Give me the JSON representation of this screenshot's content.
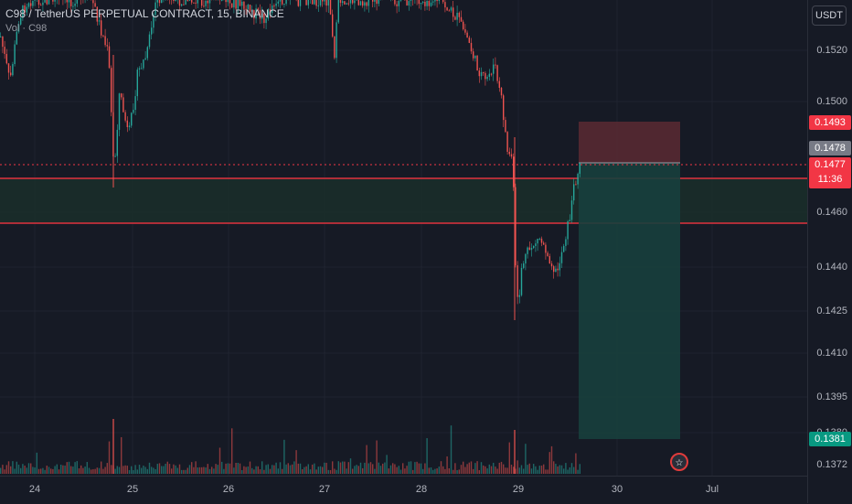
{
  "header": {
    "title": "C98 / TetherUS PERPETUAL CONTRACT, 15, BINANCE",
    "volume_label": "Vol · C98"
  },
  "price_axis": {
    "currency": "USDT",
    "ticks": [
      "0.1520",
      "0.1500",
      "0.1478",
      "0.1460",
      "0.1440",
      "0.1425",
      "0.1410",
      "0.1395",
      "0.1380",
      "0.1372"
    ],
    "labels": {
      "stop": "0.1493",
      "last": "0.1478",
      "current": "0.1477",
      "countdown": "11:36",
      "target": "0.1381"
    }
  },
  "time_axis": {
    "ticks": [
      "24",
      "25",
      "26",
      "27",
      "28",
      "29",
      "30",
      "Jul"
    ]
  },
  "colors": {
    "up": "#26a69a",
    "down": "#ef5350",
    "zone_line": "#e0323e",
    "stop_zone": "#5b2a33",
    "target_zone": "#173f3d"
  },
  "chart_data": {
    "type": "candlestick",
    "title": "C98 / TetherUS PERPETUAL CONTRACT, 15, BINANCE",
    "interval": "15",
    "y_range": [
      0.1372,
      0.152
    ],
    "x_labels": [
      "24",
      "25",
      "26",
      "27",
      "28",
      "29",
      "30",
      "Jul"
    ],
    "key_levels": {
      "resistance_zone": [
        0.1456,
        0.1473
      ],
      "position_entry": 0.1478,
      "stop_loss": 0.1493,
      "take_profit": 0.1381,
      "last_price": 0.1477
    }
  }
}
